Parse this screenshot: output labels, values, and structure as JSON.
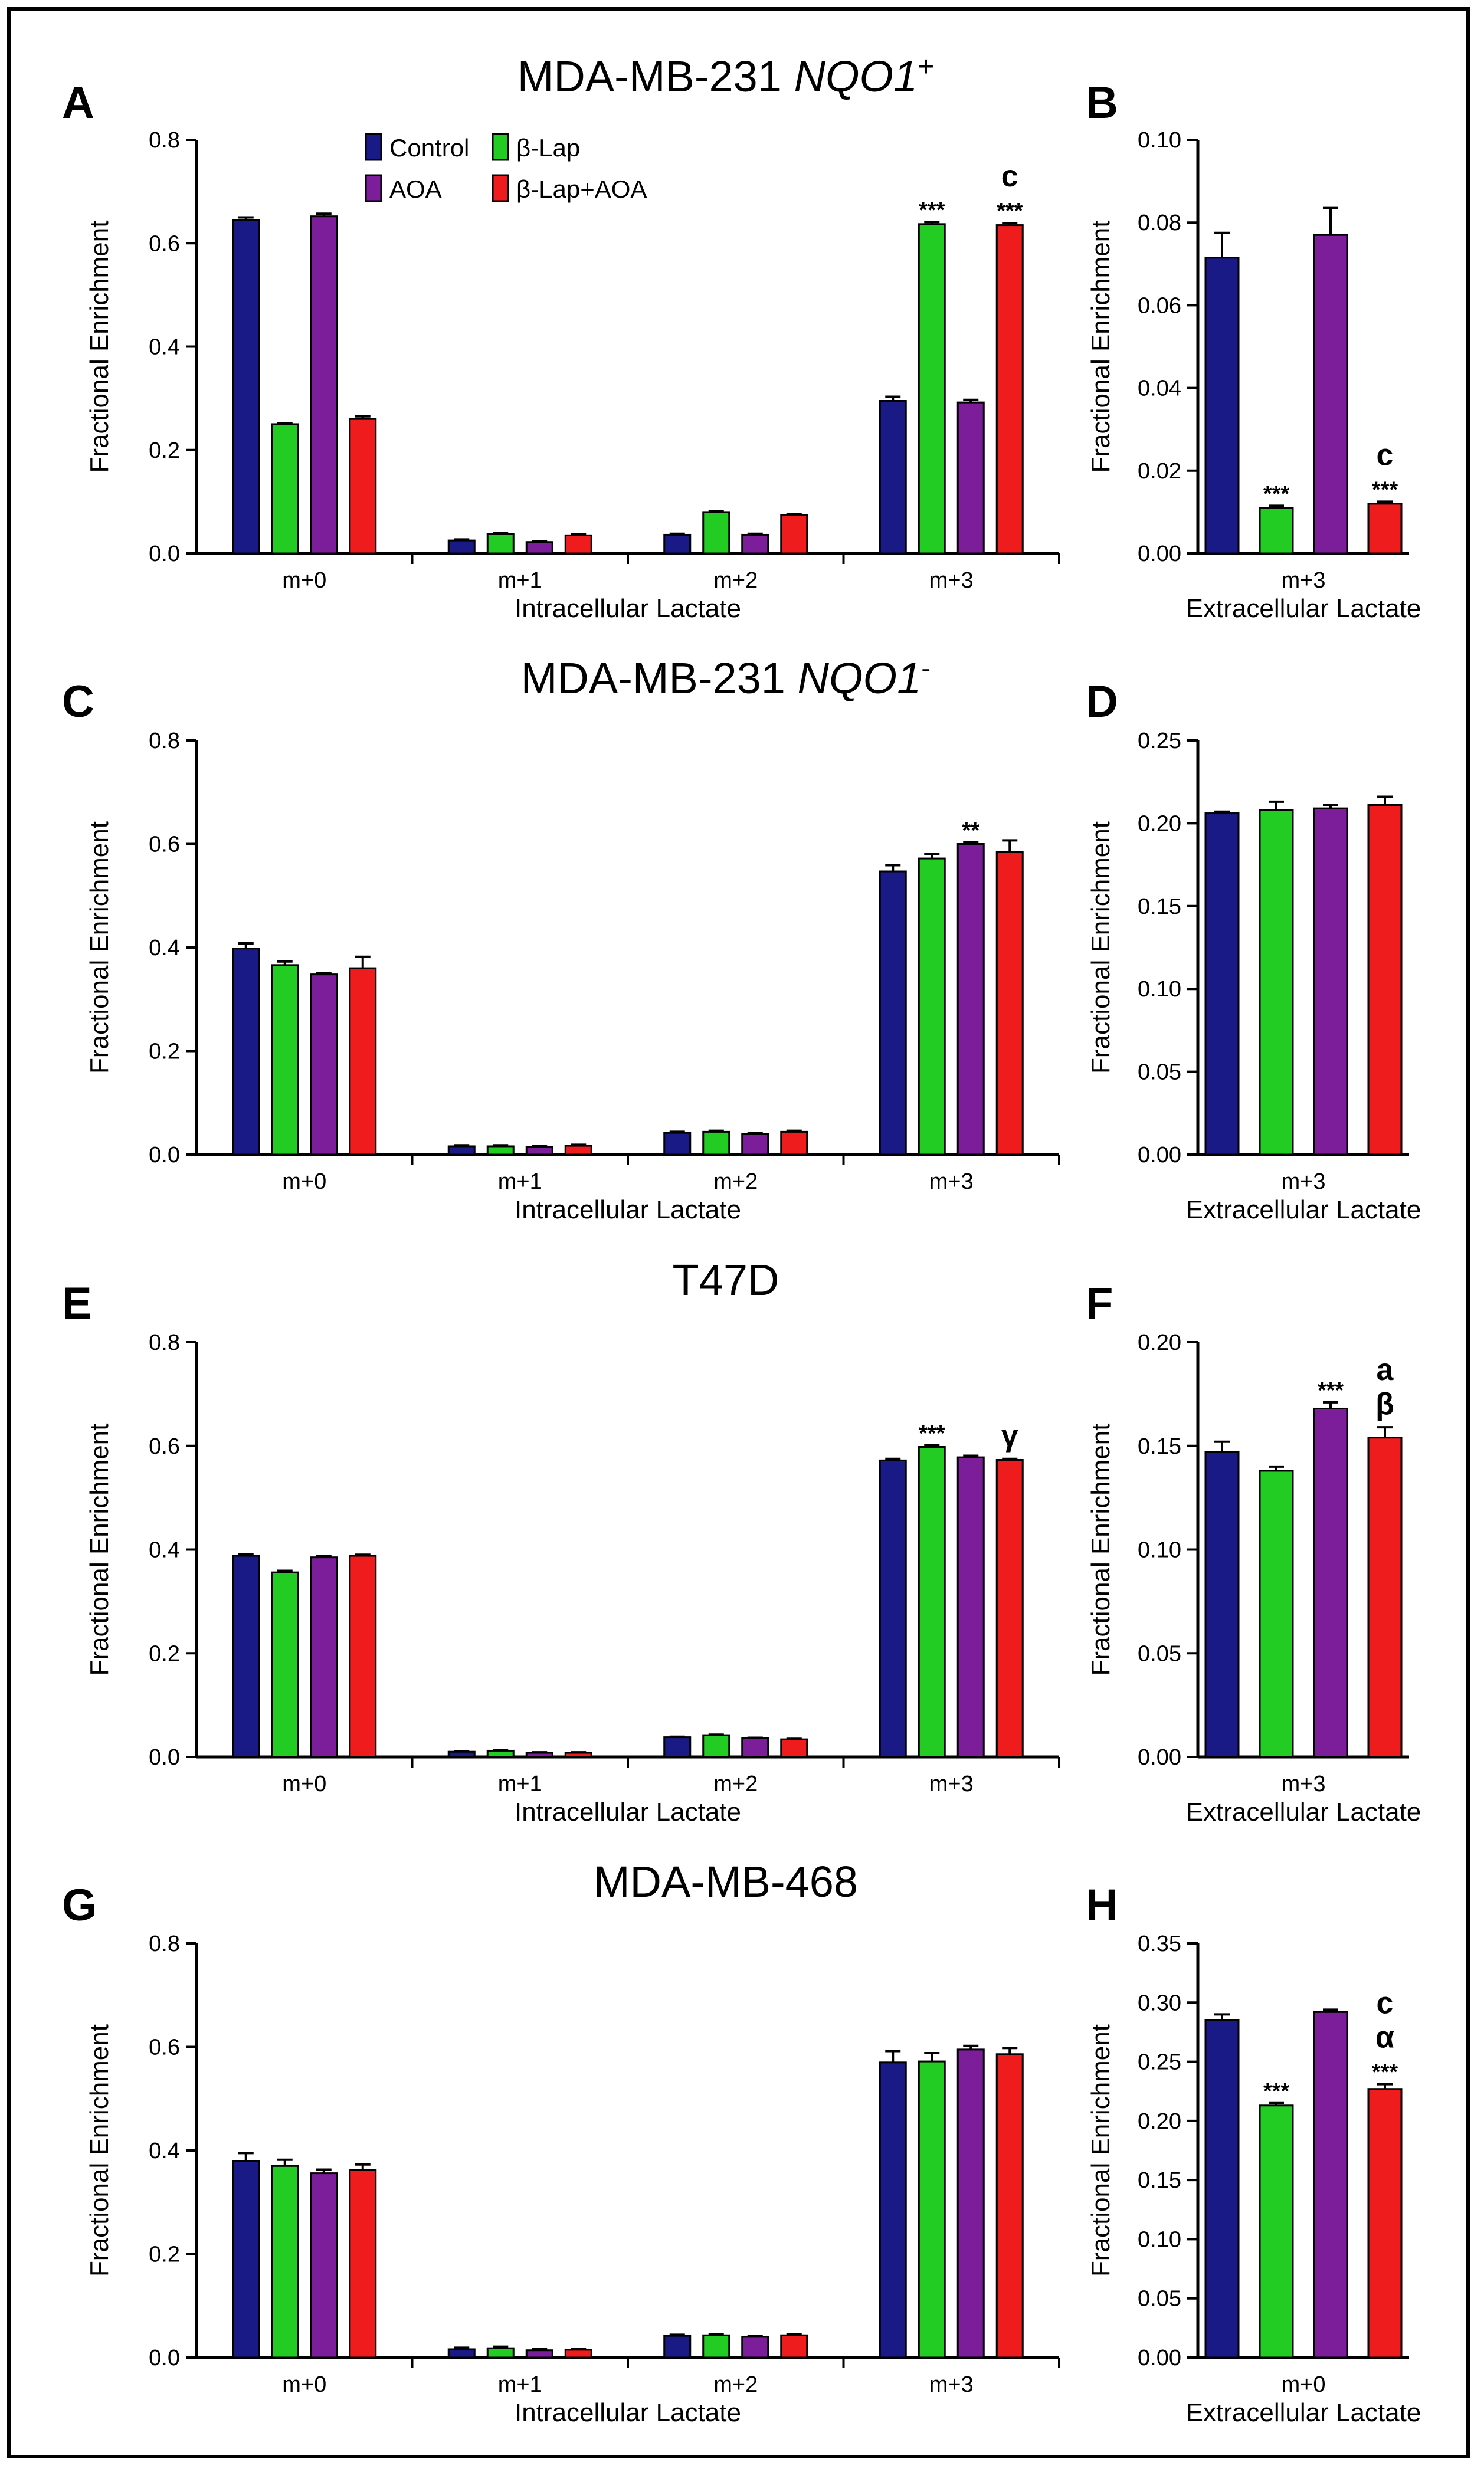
{
  "colors": {
    "Control": "#1a1a86",
    "β-Lap": "#22cc22",
    "AOA": "#7c1d99",
    "β-Lap+AOA": "#ee1c1c"
  },
  "legend": [
    "Control",
    "AOA",
    "β-Lap",
    "β-Lap+AOA"
  ],
  "rows": [
    {
      "title_main": "MDA-MB-231 ",
      "title_italic": "NQO1",
      "title_sup": "+"
    },
    {
      "title_main": "MDA-MB-231 ",
      "title_italic": "NQO1",
      "title_sup": "-"
    },
    {
      "title_main": "T47D",
      "title_italic": "",
      "title_sup": ""
    },
    {
      "title_main": "MDA-MB-468",
      "title_italic": "",
      "title_sup": ""
    }
  ],
  "chart_data": [
    {
      "panel": "A",
      "type": "bar",
      "ylabel": "Fractional Enrichment",
      "xlabel": "Intracellular Lactate",
      "ylim": [
        0,
        0.8
      ],
      "yticks": [
        0.0,
        0.2,
        0.4,
        0.6,
        0.8
      ],
      "decimals": 1,
      "categories": [
        "m+0",
        "m+1",
        "m+2",
        "m+3"
      ],
      "series": [
        {
          "name": "Control",
          "values": [
            0.645,
            0.025,
            0.036,
            0.295
          ],
          "errors": [
            0.005,
            0.002,
            0.002,
            0.008
          ]
        },
        {
          "name": "β-Lap",
          "values": [
            0.25,
            0.038,
            0.08,
            0.637
          ],
          "errors": [
            0.002,
            0.002,
            0.002,
            0.004
          ]
        },
        {
          "name": "AOA",
          "values": [
            0.652,
            0.022,
            0.036,
            0.292
          ],
          "errors": [
            0.005,
            0.002,
            0.002,
            0.005
          ]
        },
        {
          "name": "β-Lap+AOA",
          "values": [
            0.26,
            0.035,
            0.074,
            0.635
          ],
          "errors": [
            0.005,
            0.002,
            0.002,
            0.004
          ]
        }
      ],
      "annotations": [
        {
          "category": "m+3",
          "series": "β-Lap",
          "lines": [
            "***"
          ]
        },
        {
          "category": "m+3",
          "series": "β-Lap+AOA",
          "lines": [
            "c",
            "***"
          ]
        }
      ]
    },
    {
      "panel": "B",
      "type": "bar",
      "ylabel": "Fractional Enrichment",
      "xlabel": "Extracellular Lactate",
      "ylim": [
        0,
        0.1
      ],
      "yticks": [
        0.0,
        0.02,
        0.04,
        0.06,
        0.08,
        0.1
      ],
      "decimals": 2,
      "categories": [
        "m+3"
      ],
      "series": [
        {
          "name": "Control",
          "values": [
            0.0715
          ],
          "errors": [
            0.006
          ]
        },
        {
          "name": "β-Lap",
          "values": [
            0.011
          ],
          "errors": [
            0.0005
          ]
        },
        {
          "name": "AOA",
          "values": [
            0.077
          ],
          "errors": [
            0.0065
          ]
        },
        {
          "name": "β-Lap+AOA",
          "values": [
            0.012
          ],
          "errors": [
            0.0005
          ]
        }
      ],
      "annotations": [
        {
          "category": "m+3",
          "series": "β-Lap",
          "lines": [
            "***"
          ]
        },
        {
          "category": "m+3",
          "series": "β-Lap+AOA",
          "lines": [
            "c",
            "***"
          ]
        }
      ]
    },
    {
      "panel": "C",
      "type": "bar",
      "ylabel": "Fractional Enrichment",
      "xlabel": "Intracellular Lactate",
      "ylim": [
        0,
        0.8
      ],
      "yticks": [
        0.0,
        0.2,
        0.4,
        0.6,
        0.8
      ],
      "decimals": 1,
      "categories": [
        "m+0",
        "m+1",
        "m+2",
        "m+3"
      ],
      "series": [
        {
          "name": "Control",
          "values": [
            0.398,
            0.016,
            0.042,
            0.547
          ],
          "errors": [
            0.01,
            0.002,
            0.002,
            0.012
          ]
        },
        {
          "name": "β-Lap",
          "values": [
            0.366,
            0.016,
            0.044,
            0.572
          ],
          "errors": [
            0.007,
            0.002,
            0.002,
            0.008
          ]
        },
        {
          "name": "AOA",
          "values": [
            0.348,
            0.015,
            0.04,
            0.6
          ],
          "errors": [
            0.003,
            0.002,
            0.002,
            0.003
          ]
        },
        {
          "name": "β-Lap+AOA",
          "values": [
            0.36,
            0.017,
            0.044,
            0.585
          ],
          "errors": [
            0.022,
            0.002,
            0.002,
            0.022
          ]
        }
      ],
      "annotations": [
        {
          "category": "m+3",
          "series": "AOA",
          "lines": [
            "**"
          ]
        }
      ]
    },
    {
      "panel": "D",
      "type": "bar",
      "ylabel": "Fractional Enrichment",
      "xlabel": "Extracellular Lactate",
      "ylim": [
        0,
        0.25
      ],
      "yticks": [
        0.0,
        0.05,
        0.1,
        0.15,
        0.2,
        0.25
      ],
      "decimals": 2,
      "categories": [
        "m+3"
      ],
      "series": [
        {
          "name": "Control",
          "values": [
            0.206
          ],
          "errors": [
            0.001
          ]
        },
        {
          "name": "β-Lap",
          "values": [
            0.208
          ],
          "errors": [
            0.005
          ]
        },
        {
          "name": "AOA",
          "values": [
            0.209
          ],
          "errors": [
            0.002
          ]
        },
        {
          "name": "β-Lap+AOA",
          "values": [
            0.211
          ],
          "errors": [
            0.005
          ]
        }
      ],
      "annotations": []
    },
    {
      "panel": "E",
      "type": "bar",
      "ylabel": "Fractional Enrichment",
      "xlabel": "Intracellular Lactate",
      "ylim": [
        0,
        0.8
      ],
      "yticks": [
        0.0,
        0.2,
        0.4,
        0.6,
        0.8
      ],
      "decimals": 1,
      "categories": [
        "m+0",
        "m+1",
        "m+2",
        "m+3"
      ],
      "series": [
        {
          "name": "Control",
          "values": [
            0.388,
            0.01,
            0.038,
            0.572
          ],
          "errors": [
            0.003,
            0.001,
            0.001,
            0.003
          ]
        },
        {
          "name": "β-Lap",
          "values": [
            0.356,
            0.012,
            0.042,
            0.598
          ],
          "errors": [
            0.003,
            0.001,
            0.001,
            0.003
          ]
        },
        {
          "name": "AOA",
          "values": [
            0.385,
            0.008,
            0.036,
            0.578
          ],
          "errors": [
            0.002,
            0.001,
            0.001,
            0.003
          ]
        },
        {
          "name": "β-Lap+AOA",
          "values": [
            0.388,
            0.008,
            0.034,
            0.573
          ],
          "errors": [
            0.002,
            0.001,
            0.001,
            0.002
          ]
        }
      ],
      "annotations": [
        {
          "category": "m+3",
          "series": "β-Lap",
          "lines": [
            "***"
          ]
        },
        {
          "category": "m+3",
          "series": "β-Lap+AOA",
          "lines": [
            "γ"
          ]
        }
      ]
    },
    {
      "panel": "F",
      "type": "bar",
      "ylabel": "Fractional Enrichment",
      "xlabel": "Extracellular Lactate",
      "ylim": [
        0,
        0.2
      ],
      "yticks": [
        0.0,
        0.05,
        0.1,
        0.15,
        0.2
      ],
      "decimals": 2,
      "categories": [
        "m+3"
      ],
      "series": [
        {
          "name": "Control",
          "values": [
            0.147
          ],
          "errors": [
            0.005
          ]
        },
        {
          "name": "β-Lap",
          "values": [
            0.138
          ],
          "errors": [
            0.002
          ]
        },
        {
          "name": "AOA",
          "values": [
            0.168
          ],
          "errors": [
            0.003
          ]
        },
        {
          "name": "β-Lap+AOA",
          "values": [
            0.154
          ],
          "errors": [
            0.005
          ]
        }
      ],
      "annotations": [
        {
          "category": "m+3",
          "series": "AOA",
          "lines": [
            "***"
          ]
        },
        {
          "category": "m+3",
          "series": "β-Lap+AOA",
          "lines": [
            "a",
            "β"
          ]
        }
      ]
    },
    {
      "panel": "G",
      "type": "bar",
      "ylabel": "Fractional Enrichment",
      "xlabel": "Intracellular Lactate",
      "ylim": [
        0,
        0.8
      ],
      "yticks": [
        0.0,
        0.2,
        0.4,
        0.6,
        0.8
      ],
      "decimals": 1,
      "categories": [
        "m+0",
        "m+1",
        "m+2",
        "m+3"
      ],
      "series": [
        {
          "name": "Control",
          "values": [
            0.38,
            0.016,
            0.042,
            0.57
          ],
          "errors": [
            0.015,
            0.003,
            0.002,
            0.022
          ]
        },
        {
          "name": "β-Lap",
          "values": [
            0.37,
            0.018,
            0.043,
            0.572
          ],
          "errors": [
            0.012,
            0.003,
            0.002,
            0.016
          ]
        },
        {
          "name": "AOA",
          "values": [
            0.356,
            0.014,
            0.04,
            0.595
          ],
          "errors": [
            0.007,
            0.002,
            0.002,
            0.007
          ]
        },
        {
          "name": "β-Lap+AOA",
          "values": [
            0.362,
            0.015,
            0.043,
            0.586
          ],
          "errors": [
            0.011,
            0.002,
            0.002,
            0.012
          ]
        }
      ],
      "annotations": []
    },
    {
      "panel": "H",
      "type": "bar",
      "ylabel": "Fractional Enrichment",
      "xlabel": "Extracellular Lactate",
      "ylim": [
        0,
        0.35
      ],
      "yticks": [
        0.0,
        0.05,
        0.1,
        0.15,
        0.2,
        0.25,
        0.3,
        0.35
      ],
      "decimals": 2,
      "categories": [
        "m+0"
      ],
      "series": [
        {
          "name": "Control",
          "values": [
            0.285
          ],
          "errors": [
            0.005
          ]
        },
        {
          "name": "β-Lap",
          "values": [
            0.213
          ],
          "errors": [
            0.002
          ]
        },
        {
          "name": "AOA",
          "values": [
            0.292
          ],
          "errors": [
            0.002
          ]
        },
        {
          "name": "β-Lap+AOA",
          "values": [
            0.227
          ],
          "errors": [
            0.004
          ]
        }
      ],
      "annotations": [
        {
          "category": "m+0",
          "series": "β-Lap",
          "lines": [
            "***"
          ]
        },
        {
          "category": "m+0",
          "series": "β-Lap+AOA",
          "lines": [
            "c",
            "α",
            "***"
          ]
        }
      ]
    }
  ]
}
